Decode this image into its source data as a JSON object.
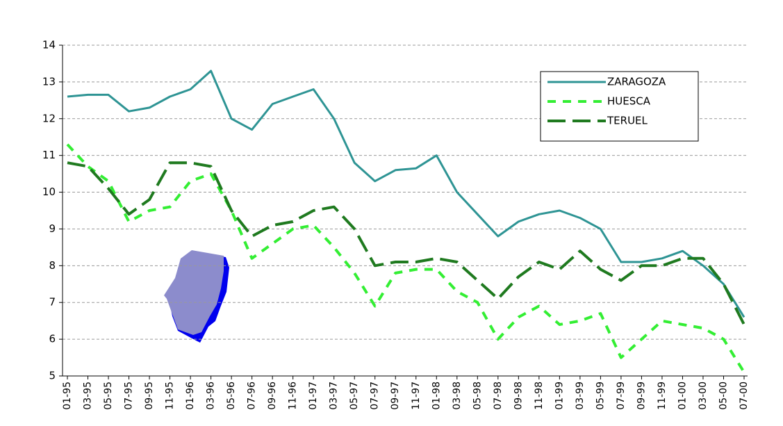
{
  "chart_data": {
    "type": "line",
    "categories": [
      "01-95",
      "03-95",
      "05-95",
      "07-95",
      "09-95",
      "11-95",
      "01-96",
      "03-96",
      "05-96",
      "07-96",
      "09-96",
      "11-96",
      "01-97",
      "03-97",
      "05-97",
      "07-97",
      "09-97",
      "11-97",
      "01-98",
      "03-98",
      "05-98",
      "07-98",
      "09-98",
      "11-98",
      "01-99",
      "03-99",
      "05-99",
      "07-99",
      "09-99",
      "11-99",
      "01-00",
      "03-00",
      "05-00",
      "07-00"
    ],
    "series": [
      {
        "name": "ZARAGOZA",
        "color": "#2e9494",
        "values": [
          12.6,
          12.65,
          12.65,
          12.2,
          12.3,
          12.6,
          12.8,
          13.3,
          12.0,
          11.7,
          12.4,
          12.6,
          12.8,
          12.0,
          10.8,
          10.3,
          10.6,
          10.65,
          11.0,
          10.0,
          9.4,
          8.8,
          9.2,
          9.4,
          9.5,
          9.3,
          9.0,
          8.1,
          8.1,
          8.2,
          8.4,
          8.0,
          7.5,
          6.6
        ]
      },
      {
        "name": "HUESCA",
        "color": "#33ee33",
        "values": [
          11.3,
          10.7,
          10.3,
          9.2,
          9.5,
          9.6,
          10.3,
          10.5,
          9.5,
          8.2,
          8.6,
          9.0,
          9.1,
          8.5,
          7.8,
          6.9,
          7.8,
          7.9,
          7.9,
          7.3,
          7.0,
          6.0,
          6.6,
          6.9,
          6.4,
          6.5,
          6.7,
          5.5,
          6.0,
          6.5,
          6.4,
          6.3,
          6.0,
          5.1
        ]
      },
      {
        "name": "TERUEL",
        "color": "#1f7a1f",
        "values": [
          10.8,
          10.7,
          10.1,
          9.4,
          9.8,
          10.8,
          10.8,
          10.7,
          9.5,
          8.8,
          9.1,
          9.2,
          9.5,
          9.6,
          9.0,
          8.0,
          8.1,
          8.1,
          8.2,
          8.1,
          7.6,
          7.1,
          7.7,
          8.1,
          7.9,
          8.4,
          7.9,
          7.6,
          8.0,
          8.0,
          8.2,
          8.2,
          7.5,
          6.4
        ]
      }
    ],
    "ylim": [
      5,
      14
    ],
    "yticks": [
      5,
      6,
      7,
      8,
      9,
      10,
      11,
      12,
      13,
      14
    ],
    "grid": true,
    "legend": "top-right"
  }
}
